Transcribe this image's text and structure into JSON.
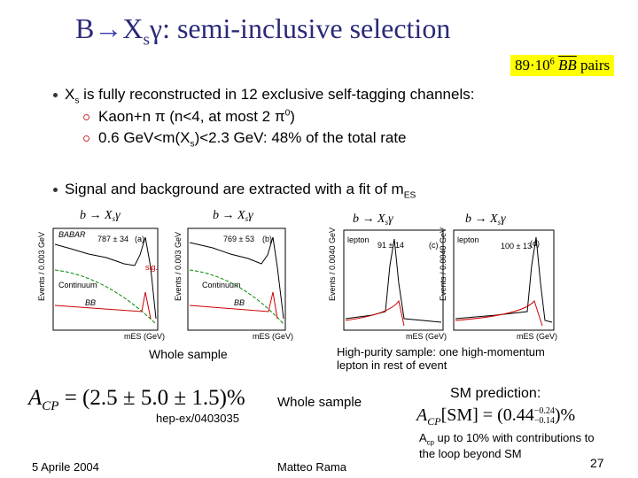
{
  "header": {
    "title": {
      "b": "B",
      "arrow": "→",
      "x": "X",
      "sub": "s",
      "rest": "γ: semi-inclusive selection"
    },
    "badge": {
      "count": "89·10",
      "exp": "6",
      "bb": "BB",
      "pairs": "pairs"
    }
  },
  "bullets": [
    {
      "a": "X",
      "sub": "s",
      "b": " is fully reconstructed in 12 exclusive self-tagging channels:",
      "items": [
        {
          "a": "Kaon+n π (n<4, at most 2 π",
          "sup": "0",
          "b": ")"
        },
        {
          "a": "0.6 GeV<m(X",
          "sub": "s",
          "b": ")<2.3 GeV: 48% of the total rate"
        }
      ]
    },
    {
      "a": "Signal and background are extracted with a fit of m",
      "sub": "ES"
    }
  ],
  "plots": [
    {
      "title": {
        "a": "b → X",
        "sub": "s",
        "b": "γ"
      },
      "yield": "787 ± 34",
      "tag": "(a)",
      "brand": "BABAR",
      "sig": "sig.",
      "continuum": "Continuum",
      "bb": "BB",
      "xlabel": "mES (GeV)",
      "ylabel": "Events / 0.003 GeV"
    },
    {
      "title": {
        "a": "b → X",
        "sub": "s",
        "b": "γ"
      },
      "yield": "769 ± 53",
      "tag": "(b)",
      "continuum": "Continuum",
      "bb": "BB",
      "xlabel": "mES (GeV)",
      "ylabel": "Events / 0.003 GeV"
    },
    {
      "title": {
        "a": "b → X",
        "sub": "s",
        "b": "γ"
      },
      "yield": "91 ± 14",
      "tag": "(c)",
      "lepton": "lepton",
      "xlabel": "mES (GeV)",
      "ylabel": "Events / 0.0040 GeV"
    },
    {
      "title": {
        "a": "b → X",
        "sub": "s",
        "b": "γ"
      },
      "yield": "100 ± 13",
      "tag": "(d)",
      "lepton": "lepton",
      "xlabel": "mES (GeV)",
      "ylabel": "Events / 0.0040 GeV"
    }
  ],
  "captions": {
    "whole": "Whole sample",
    "purity": "High-purity sample: one high-momentum lepton in rest of event"
  },
  "result": {
    "lhs": "A",
    "lhs_sub": "CP",
    "rhs": " = (2.5 ± 5.0 ± 1.5)%",
    "label": "Whole sample",
    "ref": "hep-ex/0403035"
  },
  "sm": {
    "title": "SM prediction:",
    "lhs": "A",
    "lhs_sub": "CP",
    "mid": "[SM] = (0.44",
    "up": "−0.24",
    "down": "−0.14",
    "end": ")%",
    "note_a": "A",
    "note_sub": "cp",
    "note_b": " up to 10% with contributions to the loop beyond SM"
  },
  "footer": {
    "date": "5 Aprile 2004",
    "author": "Matteo Rama",
    "page": "27"
  }
}
